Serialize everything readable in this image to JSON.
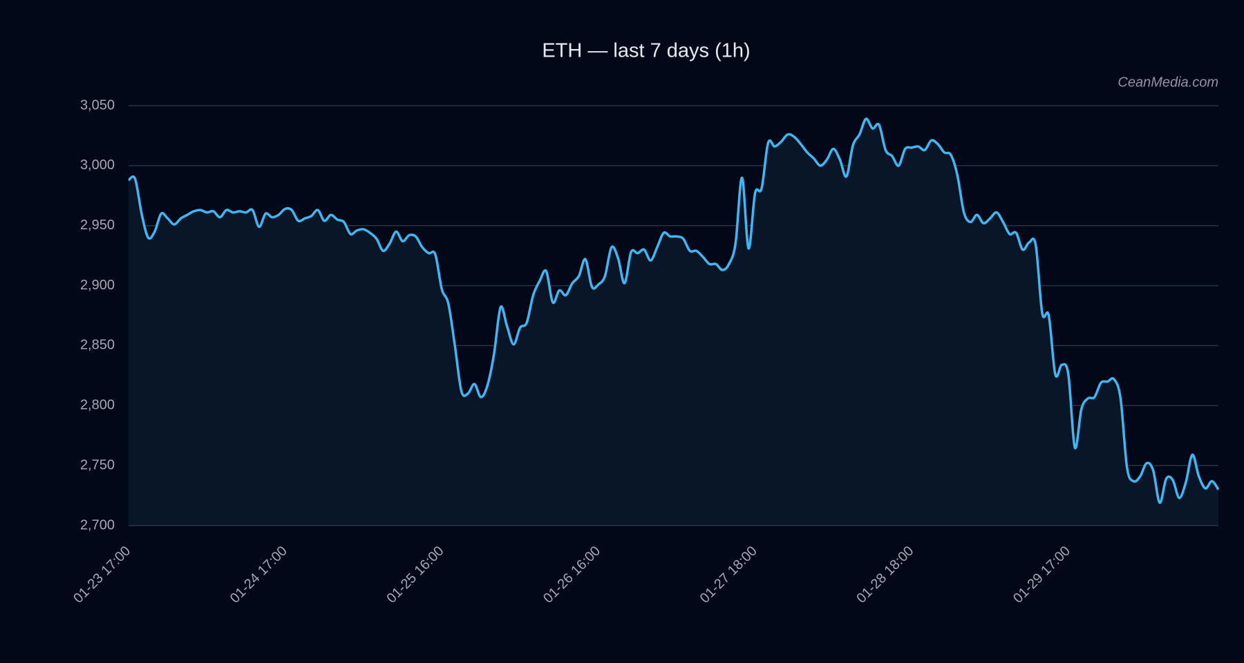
{
  "chart_data": {
    "type": "line",
    "title": "ETH — last 7 days (1h)",
    "watermark": "CeanMedia.com",
    "color": "#3db8f5",
    "fill": "#081628",
    "grid": true,
    "categories": [
      "01-23 17:00",
      null,
      null,
      null,
      null,
      null,
      null,
      null,
      null,
      null,
      null,
      null,
      null,
      null,
      null,
      null,
      null,
      null,
      null,
      null,
      null,
      null,
      null,
      null,
      "01-24 17:00",
      null,
      null,
      null,
      null,
      null,
      null,
      null,
      null,
      null,
      null,
      null,
      null,
      null,
      null,
      null,
      null,
      null,
      null,
      null,
      null,
      null,
      null,
      null,
      "01-25 16:00",
      null,
      null,
      null,
      null,
      null,
      null,
      null,
      null,
      null,
      null,
      null,
      null,
      null,
      null,
      null,
      null,
      null,
      null,
      null,
      null,
      null,
      null,
      null,
      "01-26 16:00",
      null,
      null,
      null,
      null,
      null,
      null,
      null,
      null,
      null,
      null,
      null,
      null,
      null,
      null,
      null,
      null,
      null,
      null,
      null,
      null,
      null,
      null,
      null,
      "01-27 18:00",
      null,
      null,
      null,
      null,
      null,
      null,
      null,
      null,
      null,
      null,
      null,
      null,
      null,
      null,
      null,
      null,
      null,
      null,
      null,
      null,
      null,
      null,
      null,
      "01-28 18:00",
      null,
      null,
      null,
      null,
      null,
      null,
      null,
      null,
      null,
      null,
      null,
      null,
      null,
      null,
      null,
      null,
      null,
      null,
      null,
      null,
      null,
      null,
      null,
      "01-29 17:00",
      null,
      null,
      null,
      null,
      null,
      null,
      null,
      null,
      null,
      null,
      null,
      null,
      null,
      null,
      null,
      null,
      null,
      null,
      null,
      null,
      null,
      null,
      null
    ],
    "values": [
      2988,
      2989,
      2960,
      2940,
      2945,
      2960,
      2956,
      2951,
      2956,
      2959,
      2962,
      2963,
      2961,
      2962,
      2957,
      2963,
      2961,
      2962,
      2961,
      2963,
      2949,
      2960,
      2957,
      2959,
      2964,
      2963,
      2954,
      2956,
      2958,
      2963,
      2954,
      2959,
      2955,
      2953,
      2943,
      2946,
      2947,
      2944,
      2939,
      2929,
      2935,
      2945,
      2937,
      2942,
      2941,
      2932,
      2927,
      2926,
      2897,
      2885,
      2850,
      2812,
      2810,
      2818,
      2807,
      2817,
      2843,
      2882,
      2866,
      2851,
      2865,
      2869,
      2892,
      2904,
      2912,
      2886,
      2896,
      2892,
      2902,
      2908,
      2922,
      2899,
      2901,
      2908,
      2932,
      2923,
      2902,
      2928,
      2927,
      2930,
      2921,
      2932,
      2944,
      2941,
      2941,
      2939,
      2929,
      2929,
      2924,
      2918,
      2918,
      2913,
      2918,
      2935,
      2990,
      2931,
      2977,
      2981,
      3019,
      3016,
      3020,
      3026,
      3024,
      3018,
      3011,
      3006,
      3000,
      3005,
      3014,
      3005,
      2991,
      3017,
      3026,
      3039,
      3031,
      3034,
      3013,
      3008,
      3000,
      3014,
      3015,
      3016,
      3013,
      3021,
      3018,
      3011,
      3009,
      2992,
      2961,
      2953,
      2959,
      2952,
      2956,
      2961,
      2953,
      2943,
      2944,
      2930,
      2936,
      2934,
      2877,
      2875,
      2826,
      2834,
      2826,
      2765,
      2797,
      2806,
      2807,
      2819,
      2820,
      2822,
      2806,
      2748,
      2737,
      2741,
      2752,
      2746,
      2719,
      2739,
      2738,
      2723,
      2736,
      2759,
      2741,
      2731,
      2737,
      2730
    ],
    "ylim": [
      2700,
      3050
    ],
    "yticks": [
      {
        "value": 2700,
        "label": "2,700"
      },
      {
        "value": 2750,
        "label": "2,750"
      },
      {
        "value": 2800,
        "label": "2,800"
      },
      {
        "value": 2850,
        "label": "2,850"
      },
      {
        "value": 2900,
        "label": "2,900"
      },
      {
        "value": 2950,
        "label": "2,950"
      },
      {
        "value": 3000,
        "label": "3,000"
      },
      {
        "value": 3050,
        "label": "3,050"
      }
    ]
  }
}
